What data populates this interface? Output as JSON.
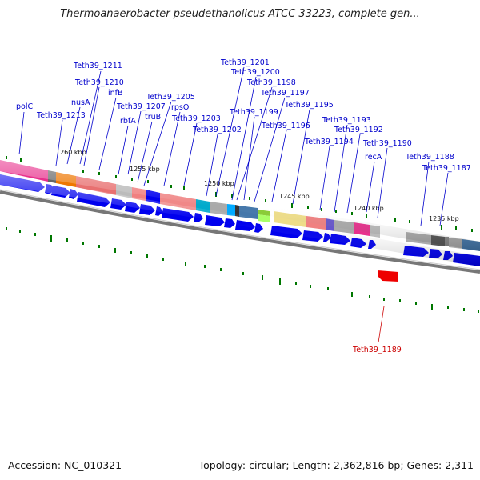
{
  "title": "Thermoanaerobacter pseudethanolicus ATCC 33223, complete gen...",
  "footer": {
    "accession": "Accession: NC_010321",
    "summary": "Topology: circular; Length: 2,362,816 bp; Genes: 2,311"
  },
  "ticks": [
    "1260 kbp",
    "1255 kbp",
    "1250 kbp",
    "1245 kbp",
    "1240 kbp",
    "1235 kbp"
  ],
  "labels": [
    {
      "text": "Teth39_1211"
    },
    {
      "text": "Teth39_1210"
    },
    {
      "text": "nusA"
    },
    {
      "text": "infB"
    },
    {
      "text": "polC"
    },
    {
      "text": "Teth39_1213"
    },
    {
      "text": "Teth39_1207"
    },
    {
      "text": "rbfA"
    },
    {
      "text": "Teth39_1205"
    },
    {
      "text": "truB"
    },
    {
      "text": "rpsO"
    },
    {
      "text": "Teth39_1203"
    },
    {
      "text": "Teth39_1202"
    },
    {
      "text": "Teth39_1201"
    },
    {
      "text": "Teth39_1200"
    },
    {
      "text": "Teth39_1198"
    },
    {
      "text": "Teth39_1199"
    },
    {
      "text": "Teth39_1197"
    },
    {
      "text": "Teth39_1196"
    },
    {
      "text": "Teth39_1195"
    },
    {
      "text": "Teth39_1193"
    },
    {
      "text": "Teth39_1192"
    },
    {
      "text": "Teth39_1194"
    },
    {
      "text": "Teth39_1190"
    },
    {
      "text": "recA"
    },
    {
      "text": "Teth39_1188"
    },
    {
      "text": "Teth39_1187"
    },
    {
      "text": "Teth39_1189",
      "color": "#cc0000"
    }
  ],
  "colors": {
    "forward_gene": "#0000ee",
    "reverse_gene": "#ee0000",
    "label": "#0000cc",
    "backbone": "#777777",
    "gc_tick": "#007700"
  }
}
